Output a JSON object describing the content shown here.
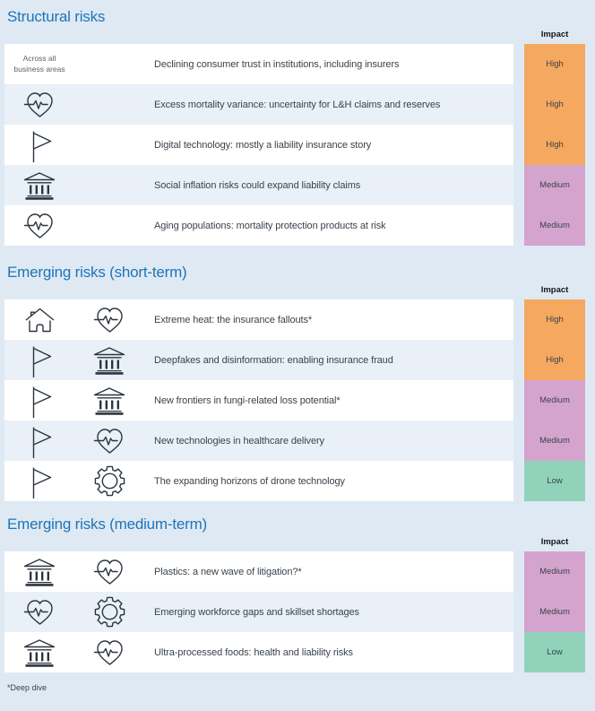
{
  "page": {
    "footnote": "*Deep dive"
  },
  "impact_colors": {
    "High": "#f5a85f",
    "Medium": "#d4a4cf",
    "Low": "#90d3ba"
  },
  "theme": {
    "background": "#dfe9f3",
    "alt_row": "#e9f0f8",
    "title_blue": "#1e74b9",
    "icon_ink": "#2c353e"
  },
  "sections": [
    {
      "title": "Structural risks",
      "impact_header": "Impact",
      "rows": [
        {
          "label_lines": [
            "Across all",
            "business areas"
          ],
          "icons": [],
          "text": "Declining consumer trust in institutions, including insurers",
          "impact": "High"
        },
        {
          "icons": [
            "heart-pulse-icon"
          ],
          "text": "Excess mortality variance: uncertainty for L&H claims and reserves",
          "impact": "High"
        },
        {
          "icons": [
            "flag-icon"
          ],
          "text": "Digital technology: mostly a liability insurance story",
          "impact": "High"
        },
        {
          "icons": [
            "bank-icon"
          ],
          "text": "Social inflation risks could expand liability claims",
          "impact": "Medium"
        },
        {
          "icons": [
            "heart-pulse-icon"
          ],
          "text": "Aging populations: mortality protection products at risk",
          "impact": "Medium"
        }
      ]
    },
    {
      "title": "Emerging risks (short-term)",
      "impact_header": "Impact",
      "rows": [
        {
          "icons": [
            "house-icon",
            "heart-pulse-icon"
          ],
          "text": "Extreme heat: the insurance fallouts*",
          "impact": "High"
        },
        {
          "icons": [
            "flag-icon",
            "bank-icon"
          ],
          "text": "Deepfakes and disinformation: enabling insurance fraud",
          "impact": "High"
        },
        {
          "icons": [
            "flag-icon",
            "bank-icon"
          ],
          "text": "New frontiers in fungi-related loss potential*",
          "impact": "Medium"
        },
        {
          "icons": [
            "flag-icon",
            "heart-pulse-icon"
          ],
          "text": "New technologies in healthcare delivery",
          "impact": "Medium"
        },
        {
          "icons": [
            "flag-icon",
            "gear-icon"
          ],
          "text": "The expanding horizons of drone technology",
          "impact": "Low"
        }
      ]
    },
    {
      "title": "Emerging risks (medium-term)",
      "impact_header": "Impact",
      "rows": [
        {
          "icons": [
            "bank-icon",
            "heart-pulse-icon"
          ],
          "text": "Plastics: a new wave of litigation?*",
          "impact": "Medium"
        },
        {
          "icons": [
            "heart-pulse-icon",
            "gear-icon"
          ],
          "text": "Emerging workforce gaps and skillset shortages",
          "impact": "Medium"
        },
        {
          "icons": [
            "bank-icon",
            "heart-pulse-icon"
          ],
          "text": "Ultra-processed foods: health and liability risks",
          "impact": "Low"
        }
      ]
    }
  ]
}
